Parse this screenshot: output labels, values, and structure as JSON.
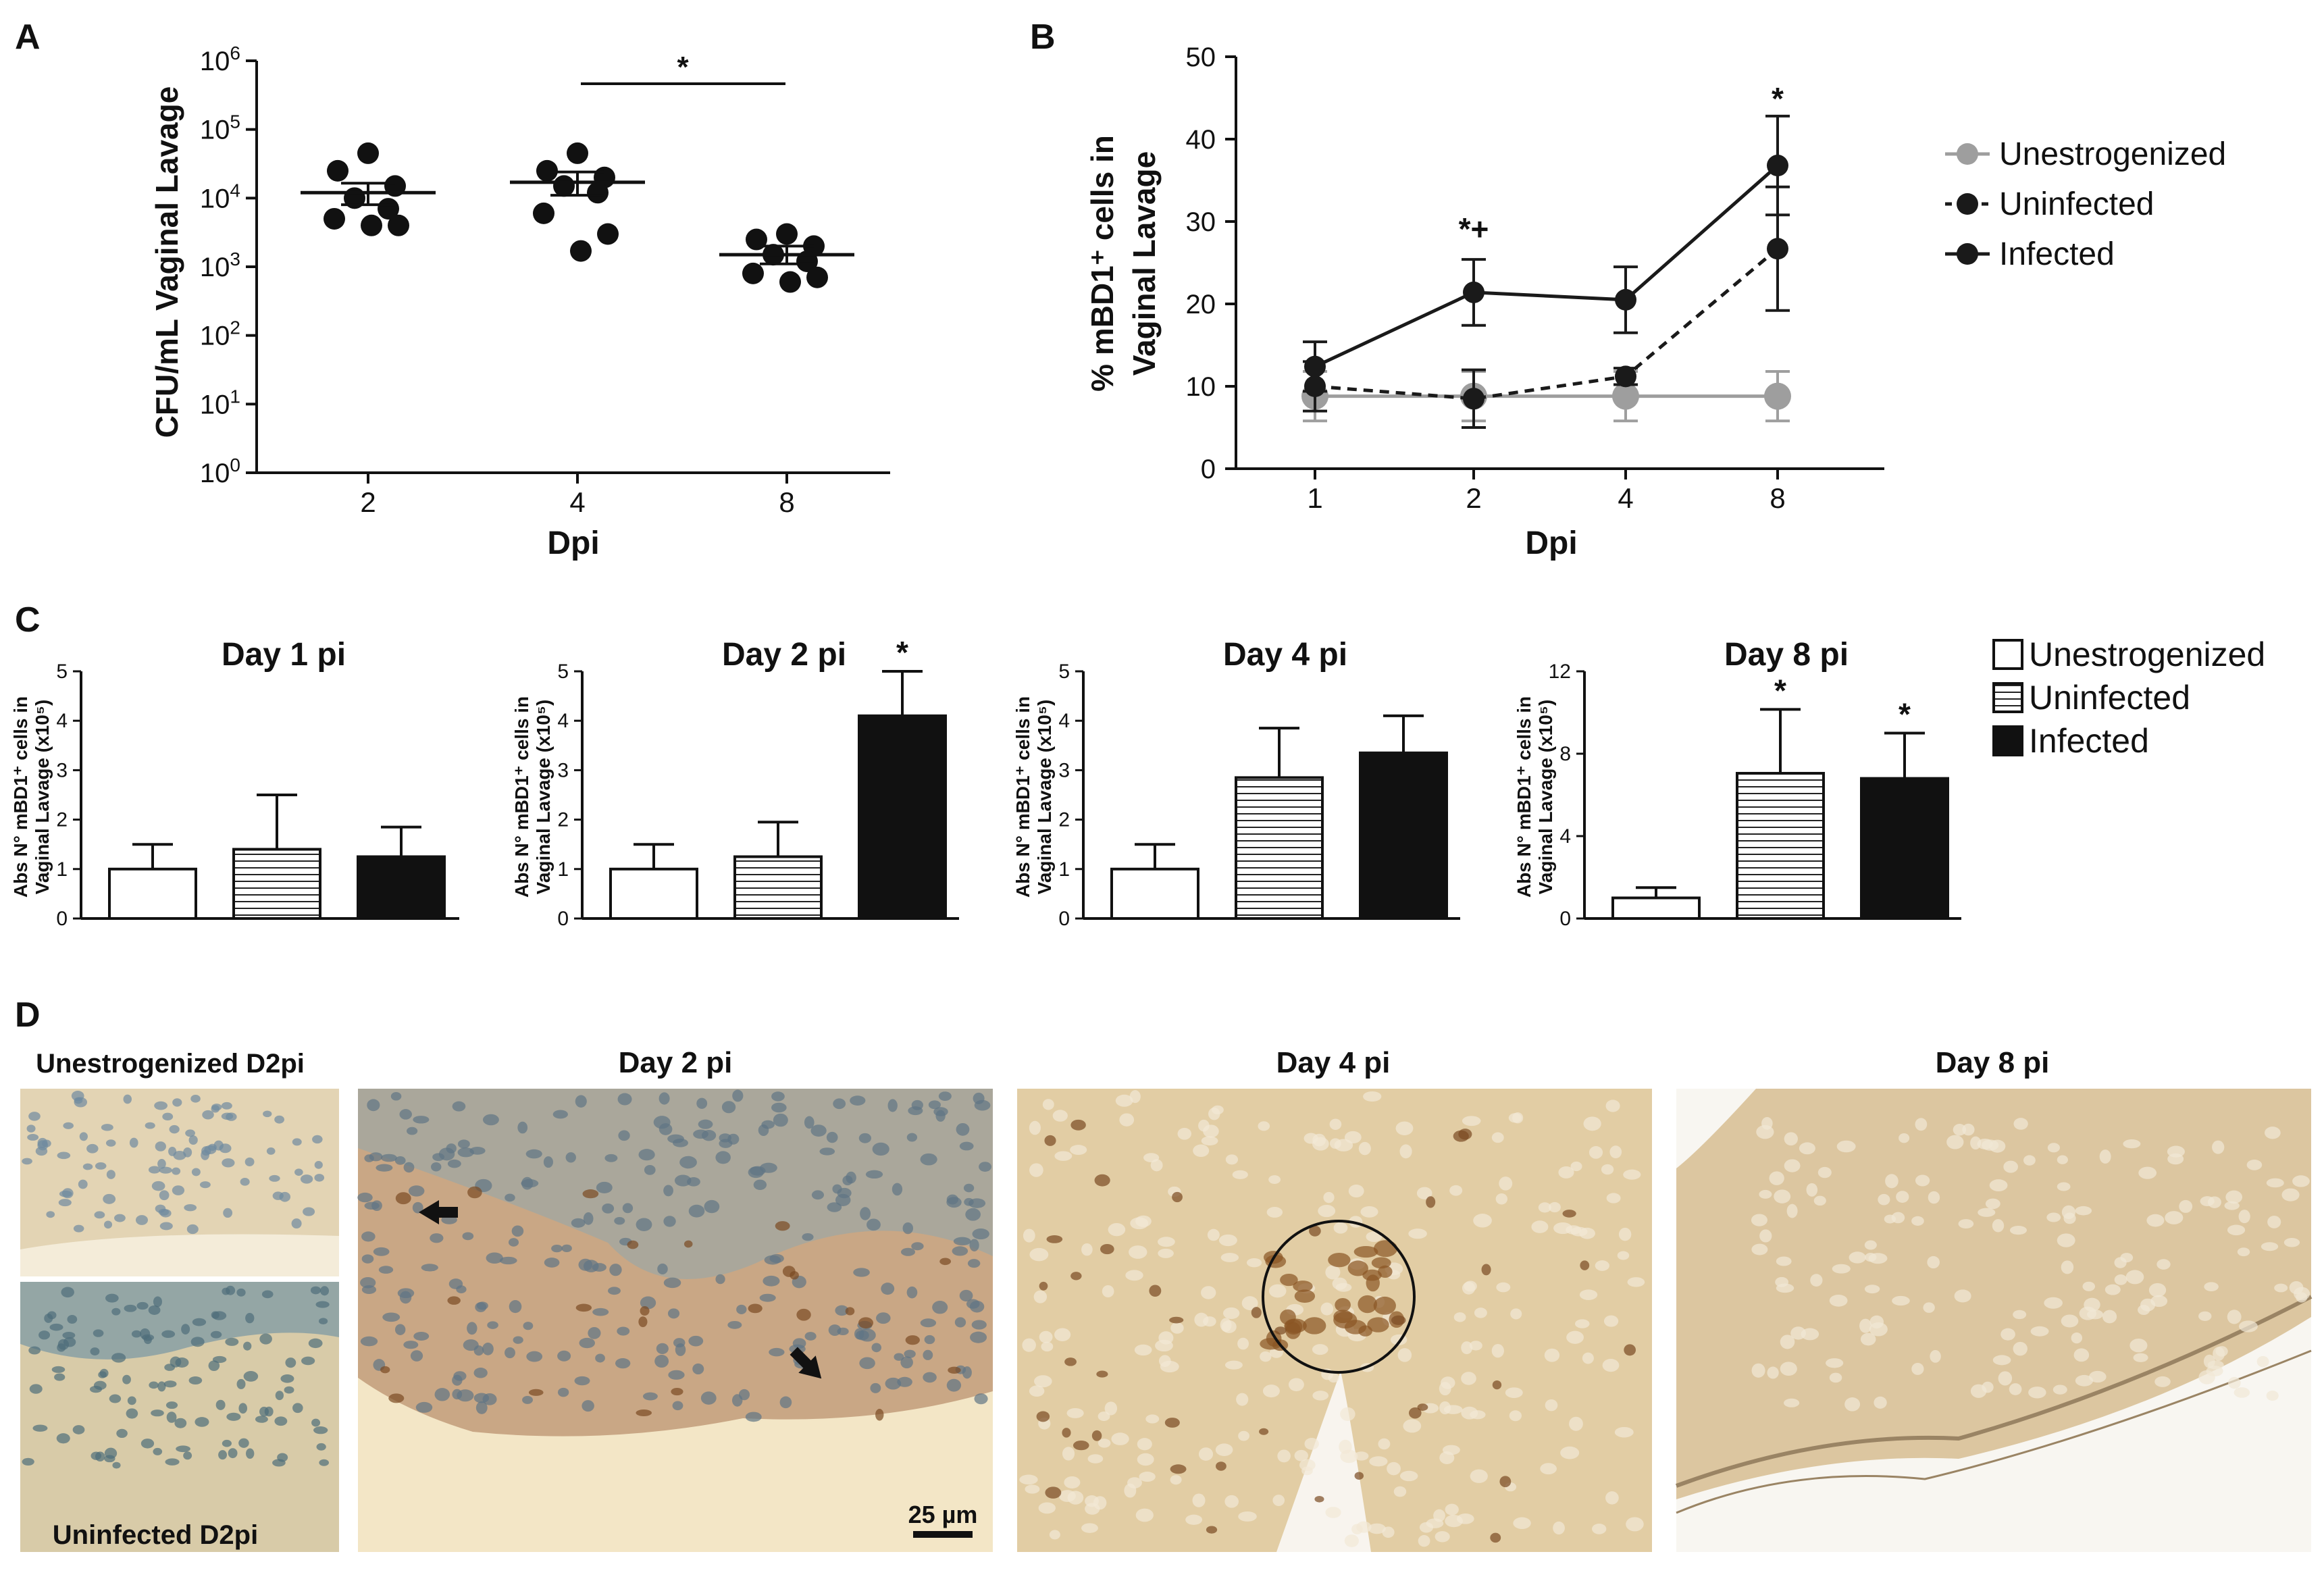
{
  "panels": {
    "A": {
      "letter": "A",
      "ylabel": "CFU/mL Vaginal Lavage",
      "xlabel": "Dpi",
      "ytick_labels": [
        {
          "base": "10",
          "exp": "0"
        },
        {
          "base": "10",
          "exp": "1"
        },
        {
          "base": "10",
          "exp": "2"
        },
        {
          "base": "10",
          "exp": "3"
        },
        {
          "base": "10",
          "exp": "4"
        },
        {
          "base": "10",
          "exp": "5"
        },
        {
          "base": "10",
          "exp": "6"
        }
      ],
      "significance": "*"
    },
    "B": {
      "letter": "B",
      "ylabel": "% mBD1⁺ cells in",
      "ylabel2": "Vaginal Lavage",
      "xlabel": "Dpi",
      "annotations": {
        "day2": "*+",
        "day8": "*"
      }
    },
    "C": {
      "letter": "C",
      "ylabel": "Abs N° mBD1⁺ cells in",
      "ylabel2": "Vaginal Lavage (x10⁵)"
    },
    "D": {
      "letter": "D",
      "titles": [
        "Unestrogenized D2pi",
        "Day 2 pi",
        "Day 4 pi",
        "Day 8 pi"
      ],
      "bottom_label": "Uninfected D2pi",
      "scalebar": "25 µm"
    }
  },
  "colors": {
    "unestrogenized": "#9e9e9e",
    "uninfected": "#1a1a1a",
    "infected": "#1a1a1a",
    "tissue_bg": "#e6d2b0",
    "stain_dark": "#7a4a22",
    "nucleus": "#6f8aa0"
  },
  "chart_data": [
    {
      "type": "scatter",
      "panel": "A",
      "xlabel": "Dpi",
      "ylabel": "CFU/mL Vaginal Lavage",
      "yscale": "log",
      "ylim": [
        1,
        1000000
      ],
      "categories": [
        "2",
        "4",
        "8"
      ],
      "series": [
        {
          "points": {
            "2": [
              45000,
              25000,
              15000,
              10000,
              7000,
              5000,
              4000,
              4000
            ],
            "4": [
              45000,
              25000,
              20000,
              15000,
              12000,
              6000,
              3000,
              1700
            ],
            "8": [
              3000,
              2500,
              2000,
              1500,
              1200,
              800,
              700,
              600
            ]
          }
        }
      ],
      "mean": {
        "2": 12000,
        "4": 17000,
        "8": 1500
      },
      "sem_low": {
        "2": 8000,
        "4": 11000,
        "8": 1100
      },
      "sem_high": {
        "2": 16500,
        "4": 24000,
        "8": 2000
      },
      "significance": [
        {
          "from": "4",
          "to": "8",
          "label": "*"
        }
      ]
    },
    {
      "type": "line",
      "panel": "B",
      "xlabel": "Dpi",
      "ylabel": "% mBD1⁺ cells in Vaginal Lavage",
      "ylim": [
        0,
        50
      ],
      "x": [
        "1",
        "2",
        "4",
        "8"
      ],
      "series": [
        {
          "name": "Unestrogenized",
          "values": [
            8.8,
            8.8,
            8.8,
            8.8
          ],
          "error": [
            3,
            3,
            3,
            3
          ],
          "style": "solid-gray"
        },
        {
          "name": "Uninfected",
          "values": [
            10,
            8.5,
            11.2,
            26.7
          ],
          "error": [
            3,
            3.5,
            1,
            7.5
          ],
          "style": "dashed-black"
        },
        {
          "name": "Infected",
          "values": [
            12.4,
            21.4,
            20.5,
            36.8
          ],
          "error": [
            3,
            4,
            4,
            6
          ],
          "style": "solid-black"
        }
      ],
      "annotations": [
        {
          "x": "2",
          "label": "*+"
        },
        {
          "x": "8",
          "label": "*"
        }
      ],
      "legend": "right"
    },
    {
      "type": "bar",
      "panel": "C1",
      "title": "Day 1 pi",
      "ylim": [
        0,
        5
      ],
      "yticks": [
        0,
        1,
        2,
        3,
        4,
        5
      ],
      "categories": [
        "Unestrogenized",
        "Uninfected",
        "Infected"
      ],
      "values": [
        1.0,
        1.4,
        1.25
      ],
      "error": [
        0.5,
        1.1,
        0.6
      ],
      "stars": [
        false,
        false,
        false
      ]
    },
    {
      "type": "bar",
      "panel": "C2",
      "title": "Day 2 pi",
      "ylim": [
        0,
        5
      ],
      "yticks": [
        0,
        1,
        2,
        3,
        4,
        5
      ],
      "categories": [
        "Unestrogenized",
        "Uninfected",
        "Infected"
      ],
      "values": [
        1.0,
        1.25,
        4.1
      ],
      "error": [
        0.5,
        0.7,
        0.9
      ],
      "stars": [
        false,
        false,
        true
      ]
    },
    {
      "type": "bar",
      "panel": "C3",
      "title": "Day 4 pi",
      "ylim": [
        0,
        5
      ],
      "yticks": [
        0,
        1,
        2,
        3,
        4,
        5
      ],
      "categories": [
        "Unestrogenized",
        "Uninfected",
        "Infected"
      ],
      "values": [
        1.0,
        2.85,
        3.35
      ],
      "error": [
        0.5,
        1.0,
        0.75
      ],
      "stars": [
        false,
        false,
        false
      ]
    },
    {
      "type": "bar",
      "panel": "C4",
      "title": "Day 8 pi",
      "ylim": [
        0,
        12
      ],
      "yticks": [
        0,
        4,
        8,
        12
      ],
      "categories": [
        "Unestrogenized",
        "Uninfected",
        "Infected"
      ],
      "values": [
        1.0,
        7.05,
        6.8
      ],
      "error": [
        0.5,
        3.1,
        2.2
      ],
      "stars": [
        false,
        true,
        true
      ]
    }
  ],
  "legend_C": [
    "Unestrogenized",
    "Uninfected",
    "Infected"
  ]
}
